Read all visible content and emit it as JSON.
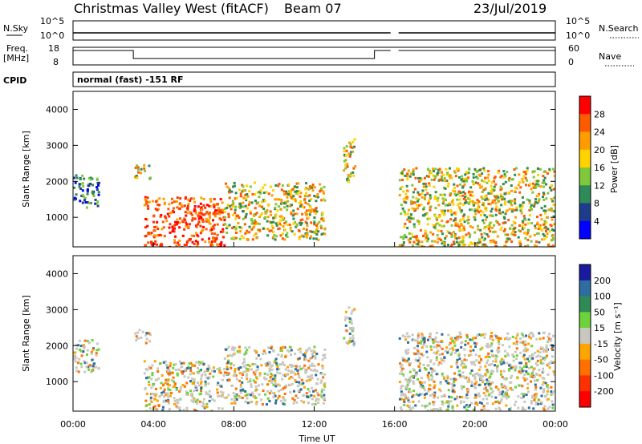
{
  "header": {
    "station": "Christmas Valley West (fitACF)",
    "beam": "Beam 07",
    "date": "23/Jul/2019"
  },
  "nsky_panel": {
    "left_label": "N.Sky",
    "left_ticks": [
      "10^5",
      "10^0"
    ],
    "right_label": "N.Search",
    "right_ticks": [
      "10^5",
      "10^0"
    ]
  },
  "freq_panel": {
    "left_label_1": "Freq.",
    "left_label_2": "[MHz]",
    "left_ticks": [
      "18",
      "8"
    ],
    "right_label": "Nave",
    "right_ticks": [
      "60",
      "0"
    ]
  },
  "cpid": {
    "label": "CPID",
    "value": "normal (fast) -151 RF"
  },
  "chart_data": [
    {
      "type": "heatmap",
      "panel": "power",
      "ylabel": "Slant Range [km]",
      "ylim": [
        180,
        4500
      ],
      "yticks": [
        1000,
        2000,
        3000,
        4000
      ],
      "colorbar": {
        "label": "Power [dB]",
        "ticks": [
          "28",
          "24",
          "20",
          "16",
          "12",
          "8",
          "4"
        ],
        "colors": [
          "#ff0000",
          "#ff5a00",
          "#ff9d00",
          "#ffd200",
          "#7fc83c",
          "#2e8b57",
          "#1e3c8c",
          "#0000ff"
        ]
      },
      "echo_regions_hours_km": [
        {
          "t": [
            0.0,
            1.3
          ],
          "r": [
            1300,
            2200
          ],
          "level": "low"
        },
        {
          "t": [
            3.0,
            3.8
          ],
          "r": [
            2100,
            2500
          ],
          "level": "mid"
        },
        {
          "t": [
            3.5,
            7.5
          ],
          "r": [
            200,
            1600
          ],
          "level": "high"
        },
        {
          "t": [
            7.5,
            12.5
          ],
          "r": [
            400,
            2000
          ],
          "level": "mid"
        },
        {
          "t": [
            13.4,
            14.0
          ],
          "r": [
            2000,
            3200
          ],
          "level": "mid"
        },
        {
          "t": [
            16.2,
            23.9
          ],
          "r": [
            200,
            2400
          ],
          "level": "mid"
        }
      ]
    },
    {
      "type": "heatmap",
      "panel": "velocity",
      "ylabel": "Slant Range [km]",
      "xlabel": "Time UT",
      "xticks": [
        "00:00",
        "04:00",
        "08:00",
        "12:00",
        "16:00",
        "20:00",
        "00:00"
      ],
      "xlim_hours": [
        0,
        24
      ],
      "ylim": [
        180,
        4500
      ],
      "yticks": [
        1000,
        2000,
        3000,
        4000
      ],
      "colorbar": {
        "label": "Velocity [m s⁻¹]",
        "ticks": [
          "200",
          "100",
          "50",
          "15",
          "-15",
          "-50",
          "-100",
          "-200"
        ],
        "colors": [
          "#1a1aa0",
          "#2e6da0",
          "#2e8b57",
          "#6ed23c",
          "#c8c8c0",
          "#ffa500",
          "#ff7000",
          "#ff3000",
          "#ff0000"
        ]
      }
    }
  ]
}
